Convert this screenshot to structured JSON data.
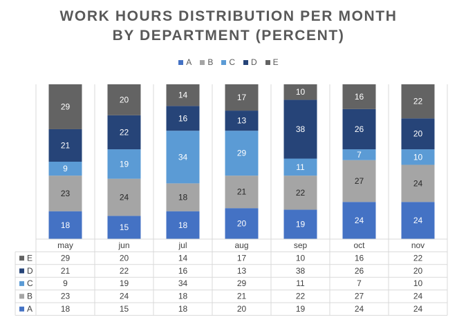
{
  "chart_data": {
    "type": "bar",
    "stacked": true,
    "title": "WORK HOURS DISTRIBUTION PER MONTH BY DEPARTMENT (PERCENT)",
    "title_lines": [
      "WORK HOURS DISTRIBUTION PER MONTH",
      "BY DEPARTMENT (PERCENT)"
    ],
    "categories": [
      "may",
      "jun",
      "jul",
      "aug",
      "sep",
      "oct",
      "nov"
    ],
    "series": [
      {
        "name": "A",
        "color": "#4472C4",
        "values": [
          18,
          15,
          18,
          20,
          19,
          24,
          24
        ]
      },
      {
        "name": "B",
        "color": "#A5A5A5",
        "values": [
          23,
          24,
          18,
          21,
          22,
          27,
          24
        ]
      },
      {
        "name": "C",
        "color": "#5B9BD5",
        "values": [
          9,
          19,
          34,
          29,
          11,
          7,
          10
        ]
      },
      {
        "name": "D",
        "color": "#264478",
        "values": [
          21,
          22,
          16,
          13,
          38,
          26,
          20
        ]
      },
      {
        "name": "E",
        "color": "#636363",
        "values": [
          29,
          20,
          14,
          17,
          10,
          16,
          22
        ]
      }
    ],
    "legend_position": "top",
    "data_table": true,
    "grid": false
  }
}
